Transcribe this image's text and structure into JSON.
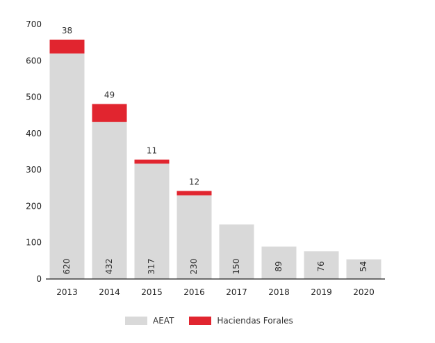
{
  "chart_data": {
    "type": "bar",
    "stacked": true,
    "categories": [
      "2013",
      "2014",
      "2015",
      "2016",
      "2017",
      "2018",
      "2019",
      "2020"
    ],
    "series": [
      {
        "name": "AEAT",
        "values": [
          620,
          432,
          317,
          230,
          150,
          89,
          76,
          54
        ],
        "color": "#d9d9d9"
      },
      {
        "name": "Haciendas Forales",
        "values": [
          38,
          49,
          11,
          12,
          0,
          0,
          0,
          0
        ],
        "color": "#e1252f"
      }
    ],
    "inner_labels": [
      "620",
      "432",
      "317",
      "230",
      "150",
      "89",
      "76",
      "54"
    ],
    "top_labels": [
      "38",
      "49",
      "11",
      "12",
      "",
      "",
      "",
      ""
    ],
    "yticks": [
      "0",
      "100",
      "200",
      "300",
      "400",
      "500",
      "600",
      "700"
    ],
    "ylim": [
      0,
      700
    ],
    "grid": false,
    "legend_position": "bottom"
  }
}
